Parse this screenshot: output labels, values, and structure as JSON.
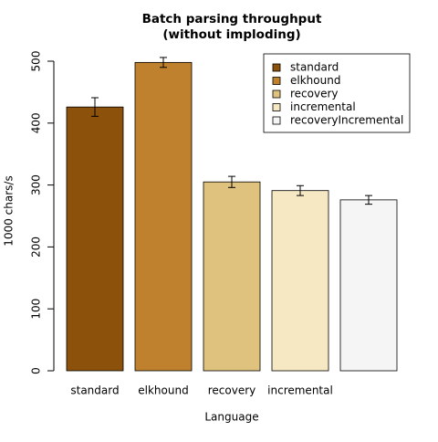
{
  "chart_data": {
    "type": "bar",
    "title": "Batch parsing throughput",
    "subtitle": "(without imploding)",
    "x_label": "Language",
    "y_label": "1000 chars/s",
    "categories": [
      "standard",
      "elkhound",
      "recovery",
      "incremental",
      null
    ],
    "values": [
      426,
      498,
      305,
      291,
      276
    ],
    "errors": [
      15,
      8,
      9,
      8,
      7
    ],
    "colors": [
      "#8c510a",
      "#bf812d",
      "#dfc27d",
      "#f6e8c3",
      "#f5f5f5"
    ],
    "legend": [
      "standard",
      "elkhound",
      "recovery",
      "incremental",
      "recoveryIncremental"
    ],
    "legend_position": "upper right",
    "ylim": [
      0,
      500
    ],
    "yticks": [
      0,
      100,
      200,
      300,
      400,
      500
    ],
    "grid": false
  }
}
